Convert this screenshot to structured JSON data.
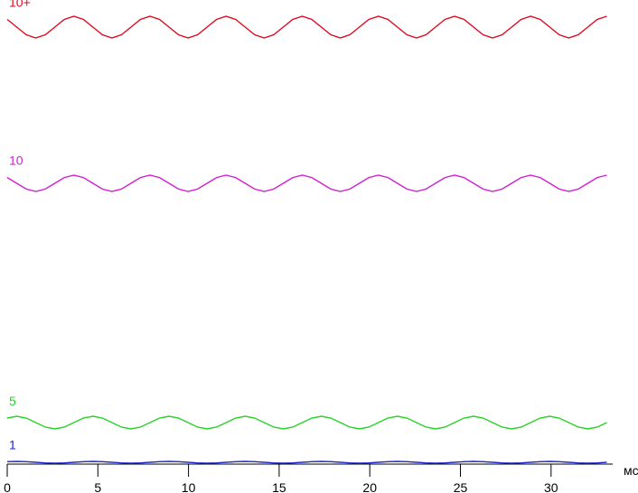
{
  "chart_data": {
    "type": "line",
    "x_label": "мс",
    "x": [
      0,
      0.525,
      1.05,
      1.575,
      2.1,
      2.625,
      3.15,
      3.675,
      4.2,
      4.725,
      5.25,
      5.775,
      6.3,
      6.825,
      7.35,
      7.875,
      8.4,
      8.925,
      9.45,
      9.975,
      10.5,
      11.025,
      11.55,
      12.075,
      12.6,
      13.125,
      13.65,
      14.175,
      14.7,
      15.225,
      15.75,
      16.275,
      16.8,
      17.325,
      17.85,
      18.375,
      18.9,
      19.425,
      19.95,
      20.475,
      21,
      21.525,
      22.05,
      22.575,
      23.1,
      23.625,
      24.15,
      24.675,
      25.2,
      25.725,
      26.25,
      26.775,
      27.3,
      27.825,
      28.35,
      28.875,
      29.4,
      29.925,
      30.45,
      30.975,
      31.5,
      32.025,
      32.55,
      33.075
    ],
    "xlim": [
      0,
      33.4
    ],
    "xticks": [
      0,
      5,
      10,
      15,
      20,
      25,
      30
    ],
    "ylim": [
      0,
      514
    ],
    "series": [
      {
        "name": "10+",
        "color": "#dc0a1e",
        "values": [
          492.5,
          484,
          475.5,
          472,
          475.5,
          484,
          492.5,
          496,
          492.5,
          484,
          475.5,
          472,
          475.5,
          484,
          492.5,
          496,
          492.5,
          484,
          475.5,
          472,
          475.5,
          484,
          492.5,
          496,
          492.5,
          484,
          475.5,
          472,
          475.5,
          484,
          492.5,
          496,
          492.5,
          484,
          475.5,
          472,
          475.5,
          484,
          492.5,
          496,
          492.5,
          484,
          475.5,
          472,
          475.5,
          484,
          492.5,
          496,
          492.5,
          484,
          475.5,
          472,
          475.5,
          484,
          492.5,
          496,
          492.5,
          484,
          475.5,
          472,
          475.5,
          484,
          492.5,
          496
        ]
      },
      {
        "name": "10",
        "color": "#d21ed2",
        "values": [
          317.4,
          311,
          304.6,
          302,
          304.6,
          311,
          317.4,
          320,
          317.4,
          311,
          304.6,
          302,
          304.6,
          311,
          317.4,
          320,
          317.4,
          311,
          304.6,
          302,
          304.6,
          311,
          317.4,
          320,
          317.4,
          311,
          304.6,
          302,
          304.6,
          311,
          317.4,
          320,
          317.4,
          311,
          304.6,
          302,
          304.6,
          311,
          317.4,
          320,
          317.4,
          311,
          304.6,
          302,
          304.6,
          311,
          317.4,
          320,
          317.4,
          311,
          304.6,
          302,
          304.6,
          311,
          317.4,
          320,
          317.4,
          311,
          304.6,
          302,
          304.6,
          311,
          317.4,
          320
        ]
      },
      {
        "name": "5",
        "color": "#28d228",
        "values": [
          51,
          53,
          51,
          46,
          41,
          39,
          41,
          46,
          51,
          53,
          51,
          46,
          41,
          39,
          41,
          46,
          51,
          53,
          51,
          46,
          41,
          39,
          41,
          46,
          51,
          53,
          51,
          46,
          41,
          39,
          41,
          46,
          51,
          53,
          51,
          46,
          41,
          39,
          41,
          46,
          51,
          53,
          51,
          46,
          41,
          39,
          41,
          46,
          51,
          53,
          51,
          46,
          41,
          39,
          41,
          46,
          51,
          53,
          51,
          46,
          41,
          39,
          41,
          46
        ]
      },
      {
        "name": "1",
        "color": "#1e28c8",
        "values": [
          2.7,
          3,
          2.7,
          2,
          1.3,
          1,
          1.3,
          2,
          2.7,
          3,
          2.7,
          2,
          1.3,
          1,
          1.3,
          2,
          2.7,
          3,
          2.7,
          2,
          1.3,
          1,
          1.3,
          2,
          2.7,
          3,
          2.7,
          2,
          1.3,
          1,
          1.3,
          2,
          2.7,
          3,
          2.7,
          2,
          1.3,
          1,
          1.3,
          2,
          2.7,
          3,
          2.7,
          2,
          1.3,
          1,
          1.3,
          2,
          2.7,
          3,
          2.7,
          2,
          1.3,
          1,
          1.3,
          2,
          2.7,
          3,
          2.7,
          2,
          1.3,
          1,
          1.3,
          2
        ]
      }
    ]
  }
}
